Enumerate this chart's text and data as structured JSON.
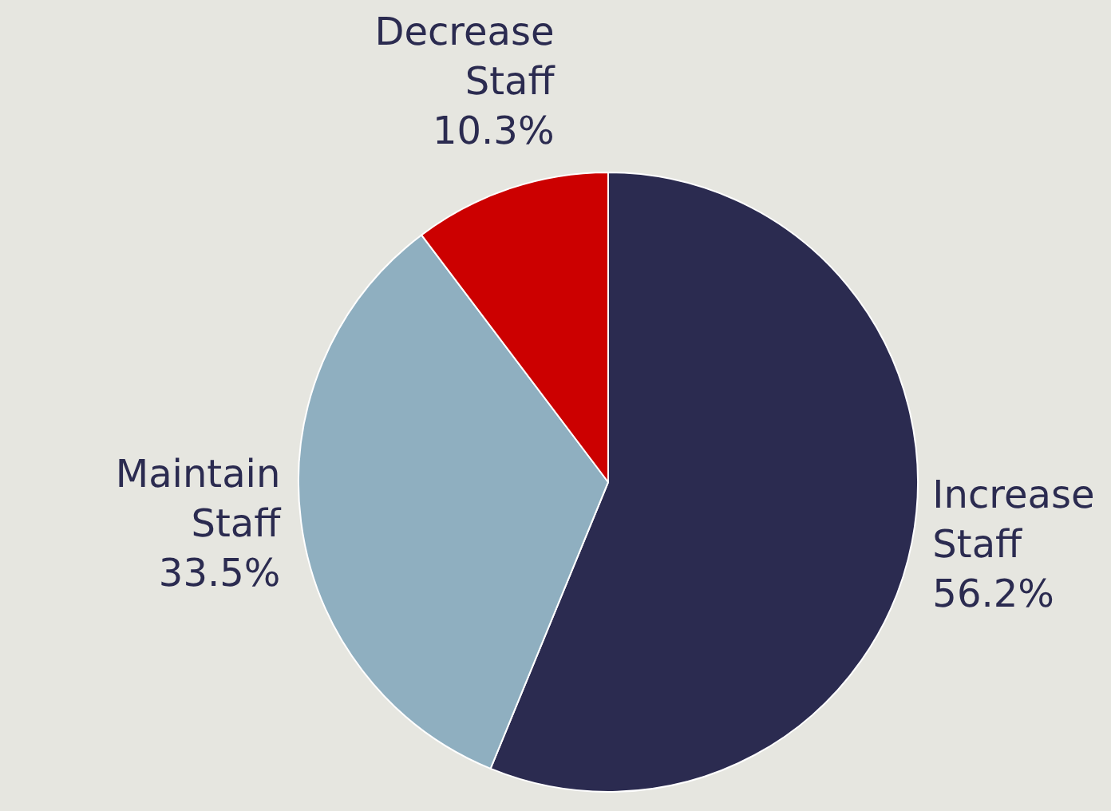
{
  "chart_data": {
    "type": "pie",
    "categories": [
      "Increase Staff",
      "Maintain Staff",
      "Decrease Staff"
    ],
    "values": [
      56.2,
      33.5,
      10.3
    ],
    "value_labels": [
      "56.2%",
      "33.5%",
      "10.3%"
    ],
    "colors": [
      "#2b2b50",
      "#8fafc0",
      "#cc0000"
    ],
    "legend": false
  }
}
